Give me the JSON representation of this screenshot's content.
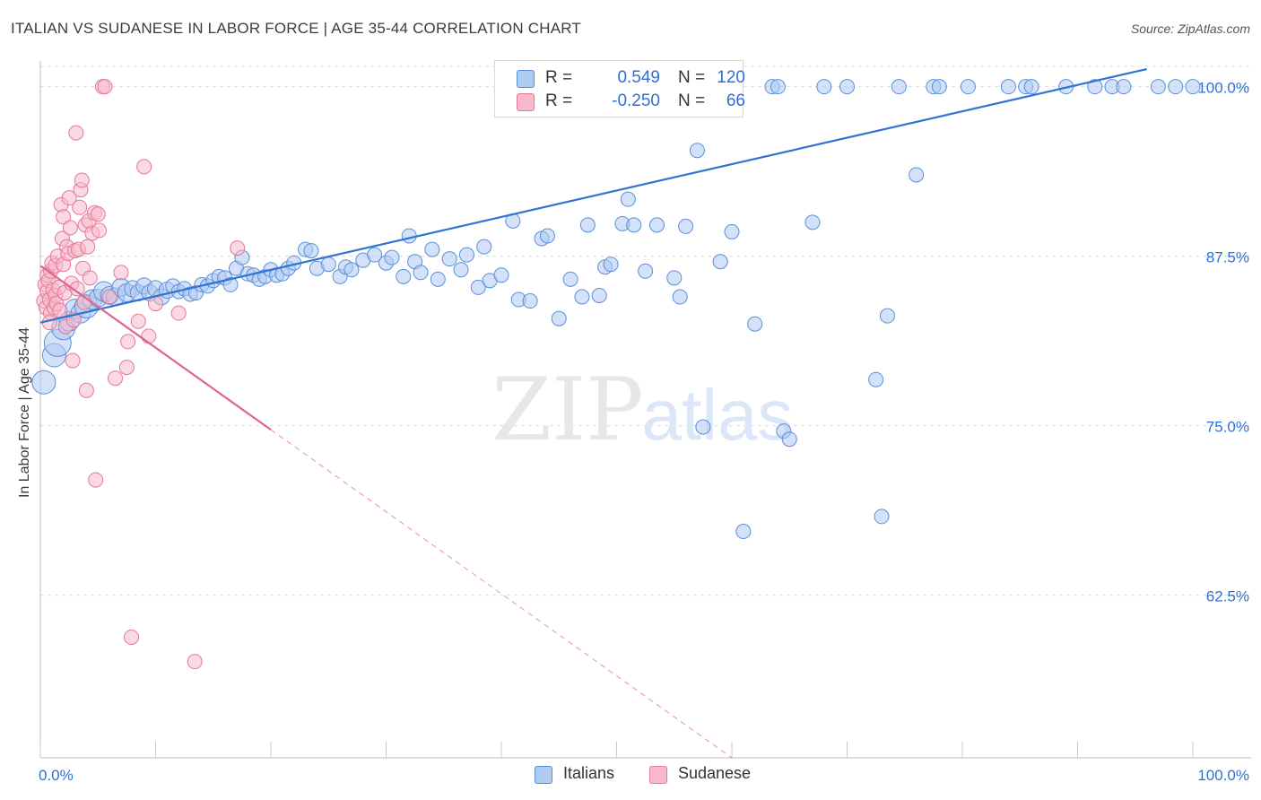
{
  "header": {
    "title": "ITALIAN VS SUDANESE IN LABOR FORCE | AGE 35-44 CORRELATION CHART",
    "source": "Source: ZipAtlas.com"
  },
  "watermark": {
    "zip": "ZIP",
    "atlas": "atlas"
  },
  "colors": {
    "italians_fill": "#aecbf2",
    "italians_stroke": "#5b8fd9",
    "italians_line": "#2f74d0",
    "sudanese_fill": "#f7b9cb",
    "sudanese_stroke": "#e5779b",
    "sudanese_line": "#e0638c",
    "value_text": "#2f6fd4",
    "grid": "#dcdcdc"
  },
  "legend": {
    "italians": {
      "r_label": "R =",
      "r_value": "0.549",
      "n_label": "N =",
      "n_value": "120"
    },
    "sudanese": {
      "r_label": "R =",
      "r_value": "-0.250",
      "n_label": "N =",
      "n_value": "66"
    }
  },
  "bottom_legend": {
    "italians": "Italians",
    "sudanese": "Sudanese"
  },
  "chart_data": {
    "type": "scatter",
    "title": "ITALIAN VS SUDANESE IN LABOR FORCE | AGE 35-44 CORRELATION CHART",
    "xlabel": "",
    "ylabel": "In Labor Force | Age 35-44",
    "xlim": [
      0,
      100
    ],
    "ylim": [
      50.5,
      101.5
    ],
    "x_tick_labels": [
      "0.0%",
      "100.0%"
    ],
    "y_ticks": [
      100,
      87.5,
      75,
      62.5
    ],
    "y_tick_labels": [
      "100.0%",
      "87.5%",
      "75.0%",
      "62.5%"
    ],
    "grid": true,
    "legend_position": "top-center",
    "series": [
      {
        "name": "Italians",
        "trend": {
          "x": [
            0,
            96
          ],
          "y": [
            82.6,
            101.3
          ],
          "style": "solid"
        },
        "points": [
          [
            0.3,
            78.2,
            13
          ],
          [
            1.2,
            80.2,
            13
          ],
          [
            1.5,
            81.1,
            15
          ],
          [
            2.0,
            82.2,
            13
          ],
          [
            2.5,
            82.7,
            11
          ],
          [
            3.0,
            83.6,
            11
          ],
          [
            3.5,
            83.3,
            11
          ],
          [
            4.0,
            83.8,
            13
          ],
          [
            4.5,
            84.3,
            11
          ],
          [
            5.0,
            84.4,
            10
          ],
          [
            5.5,
            84.9,
            11
          ],
          [
            6.0,
            84.6,
            10
          ],
          [
            6.5,
            84.5,
            10
          ],
          [
            7.0,
            85.2,
            10
          ],
          [
            7.5,
            84.8,
            10
          ],
          [
            8.0,
            85.1,
            9
          ],
          [
            8.5,
            84.8,
            9
          ],
          [
            9.0,
            85.3,
            9
          ],
          [
            9.5,
            84.8,
            9
          ],
          [
            10.0,
            85.1,
            9
          ],
          [
            10.5,
            84.5,
            9
          ],
          [
            11.0,
            85.0,
            9
          ],
          [
            11.5,
            85.3,
            8
          ],
          [
            12.0,
            84.9,
            8
          ],
          [
            12.5,
            85.1,
            8
          ],
          [
            13.0,
            84.7,
            8
          ],
          [
            13.5,
            84.8,
            8
          ],
          [
            14.0,
            85.4,
            8
          ],
          [
            14.5,
            85.3,
            8
          ],
          [
            15.0,
            85.7,
            8
          ],
          [
            15.5,
            86.0,
            8
          ],
          [
            16.0,
            85.9,
            8
          ],
          [
            16.5,
            85.4,
            8
          ],
          [
            17.0,
            86.6,
            8
          ],
          [
            17.5,
            87.4,
            8
          ],
          [
            18.0,
            86.2,
            8
          ],
          [
            18.5,
            86.1,
            8
          ],
          [
            19.0,
            85.8,
            8
          ],
          [
            19.5,
            86.0,
            8
          ],
          [
            20.0,
            86.5,
            8
          ],
          [
            20.5,
            86.1,
            8
          ],
          [
            21.0,
            86.2,
            8
          ],
          [
            21.5,
            86.6,
            8
          ],
          [
            22.0,
            87.0,
            8
          ],
          [
            23.0,
            88.0,
            8
          ],
          [
            23.5,
            87.9,
            8
          ],
          [
            24.0,
            86.6,
            8
          ],
          [
            25.0,
            86.9,
            8
          ],
          [
            26.0,
            86.0,
            8
          ],
          [
            26.5,
            86.7,
            8
          ],
          [
            27.0,
            86.5,
            8
          ],
          [
            28.0,
            87.2,
            8
          ],
          [
            29.0,
            87.6,
            8
          ],
          [
            30.0,
            87.0,
            8
          ],
          [
            30.5,
            87.4,
            8
          ],
          [
            31.5,
            86.0,
            8
          ],
          [
            32.0,
            89.0,
            8
          ],
          [
            32.5,
            87.1,
            8
          ],
          [
            33.0,
            86.3,
            8
          ],
          [
            34.0,
            88.0,
            8
          ],
          [
            34.5,
            85.8,
            8
          ],
          [
            35.5,
            87.3,
            8
          ],
          [
            36.5,
            86.5,
            8
          ],
          [
            37.0,
            87.6,
            8
          ],
          [
            38.0,
            85.2,
            8
          ],
          [
            38.5,
            88.2,
            8
          ],
          [
            39.0,
            85.7,
            8
          ],
          [
            40.0,
            86.1,
            8
          ],
          [
            41.0,
            90.1,
            8
          ],
          [
            41.5,
            84.3,
            8
          ],
          [
            42.5,
            84.2,
            8
          ],
          [
            43.5,
            88.8,
            8
          ],
          [
            44.0,
            89.0,
            8
          ],
          [
            45.0,
            82.9,
            8
          ],
          [
            46.0,
            85.8,
            8
          ],
          [
            47.0,
            84.5,
            8
          ],
          [
            47.5,
            89.8,
            8
          ],
          [
            48.5,
            84.6,
            8
          ],
          [
            49.0,
            86.7,
            8
          ],
          [
            49.5,
            86.9,
            8
          ],
          [
            50.5,
            89.9,
            8
          ],
          [
            51.0,
            91.7,
            8
          ],
          [
            51.5,
            89.8,
            8
          ],
          [
            52.5,
            86.4,
            8
          ],
          [
            53.5,
            89.8,
            8
          ],
          [
            55.0,
            85.9,
            8
          ],
          [
            55.5,
            84.5,
            8
          ],
          [
            56.0,
            89.7,
            8
          ],
          [
            57.0,
            95.3,
            8
          ],
          [
            57.5,
            74.9,
            8
          ],
          [
            59.0,
            87.1,
            8
          ],
          [
            60.0,
            89.3,
            8
          ],
          [
            61.0,
            67.2,
            8
          ],
          [
            62.0,
            82.5,
            8
          ],
          [
            63.5,
            100.0,
            8
          ],
          [
            64.0,
            100.0,
            8
          ],
          [
            64.5,
            74.6,
            8
          ],
          [
            65.0,
            74.0,
            8
          ],
          [
            67.0,
            90.0,
            8
          ],
          [
            68.0,
            100.0,
            8
          ],
          [
            70.0,
            100.0,
            8
          ],
          [
            72.5,
            78.4,
            8
          ],
          [
            73.0,
            68.3,
            8
          ],
          [
            73.5,
            83.1,
            8
          ],
          [
            74.5,
            100.0,
            8
          ],
          [
            76.0,
            93.5,
            8
          ],
          [
            77.5,
            100.0,
            8
          ],
          [
            78.0,
            100.0,
            8
          ],
          [
            80.5,
            100.0,
            8
          ],
          [
            84.0,
            100.0,
            8
          ],
          [
            85.5,
            100.0,
            8
          ],
          [
            86.0,
            100.0,
            8
          ],
          [
            89.0,
            100.0,
            8
          ],
          [
            91.5,
            100.0,
            8
          ],
          [
            93.0,
            100.0,
            8
          ],
          [
            94.0,
            100.0,
            8
          ],
          [
            97.0,
            100.0,
            8
          ],
          [
            98.5,
            100.0,
            8
          ],
          [
            100.0,
            100.0,
            8
          ]
        ]
      },
      {
        "name": "Sudanese",
        "trend": {
          "x": [
            0,
            20,
            60
          ],
          "y": [
            86.8,
            74.7,
            50.5
          ],
          "style": "solid-then-dashed"
        },
        "points": [
          [
            0.3,
            84.2
          ],
          [
            0.4,
            85.4
          ],
          [
            0.5,
            83.7
          ],
          [
            0.6,
            86.1
          ],
          [
            0.6,
            84.9
          ],
          [
            0.7,
            85.7
          ],
          [
            0.8,
            84.3
          ],
          [
            0.9,
            86.4
          ],
          [
            0.9,
            83.3
          ],
          [
            1.0,
            87.0
          ],
          [
            1.1,
            85.0
          ],
          [
            1.2,
            83.7
          ],
          [
            1.3,
            86.8
          ],
          [
            1.3,
            84.6
          ],
          [
            1.4,
            84.0
          ],
          [
            1.5,
            87.5
          ],
          [
            1.6,
            85.2
          ],
          [
            1.7,
            83.5
          ],
          [
            1.8,
            91.3
          ],
          [
            1.9,
            88.8
          ],
          [
            2.0,
            90.4
          ],
          [
            2.0,
            86.9
          ],
          [
            2.1,
            84.8
          ],
          [
            2.2,
            82.3
          ],
          [
            2.3,
            88.2
          ],
          [
            2.4,
            87.7
          ],
          [
            2.5,
            91.8
          ],
          [
            2.6,
            89.6
          ],
          [
            2.7,
            85.5
          ],
          [
            2.8,
            79.8
          ],
          [
            2.9,
            82.8
          ],
          [
            3.0,
            87.9
          ],
          [
            3.1,
            96.6
          ],
          [
            3.2,
            85.1
          ],
          [
            3.3,
            88.0
          ],
          [
            3.4,
            91.1
          ],
          [
            3.5,
            92.4
          ],
          [
            3.6,
            93.1
          ],
          [
            3.7,
            86.6
          ],
          [
            3.8,
            84.1
          ],
          [
            3.9,
            89.8
          ],
          [
            4.0,
            77.6
          ],
          [
            4.1,
            88.2
          ],
          [
            4.2,
            90.1
          ],
          [
            4.3,
            85.9
          ],
          [
            4.5,
            89.2
          ],
          [
            4.7,
            90.7
          ],
          [
            4.8,
            71.0
          ],
          [
            5.0,
            90.6
          ],
          [
            5.1,
            89.4
          ],
          [
            5.4,
            100.0
          ],
          [
            5.6,
            100.0
          ],
          [
            6.0,
            84.5
          ],
          [
            6.5,
            78.5
          ],
          [
            7.0,
            86.3
          ],
          [
            7.5,
            79.3
          ],
          [
            7.6,
            81.2
          ],
          [
            7.9,
            59.4
          ],
          [
            8.5,
            82.7
          ],
          [
            9.0,
            94.1
          ],
          [
            9.4,
            81.6
          ],
          [
            10.0,
            84.0
          ],
          [
            12.0,
            83.3
          ],
          [
            13.4,
            57.6
          ],
          [
            17.1,
            88.1
          ],
          [
            0.8,
            82.6
          ]
        ]
      }
    ]
  }
}
